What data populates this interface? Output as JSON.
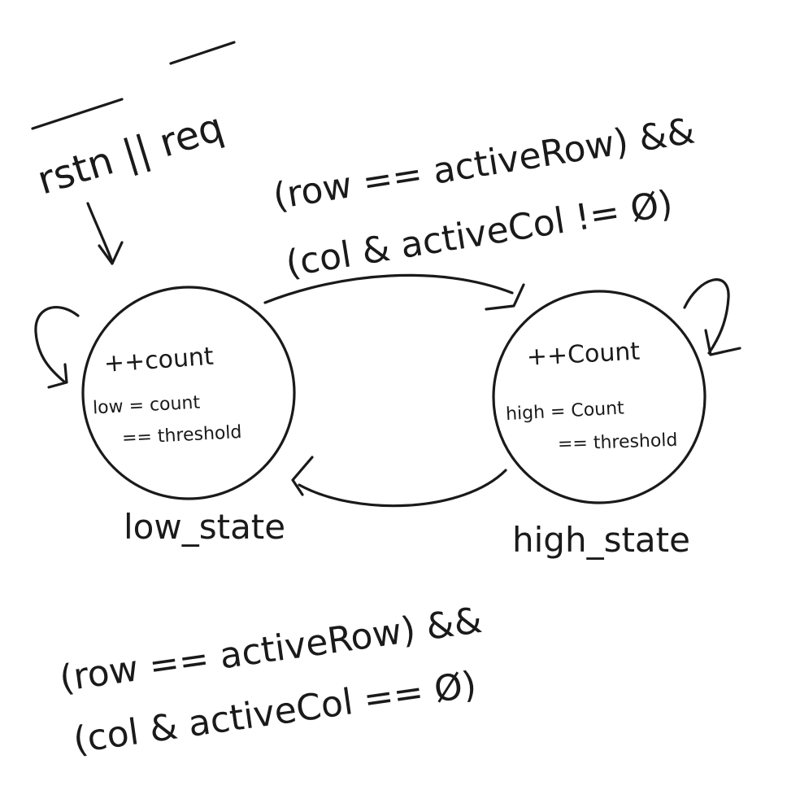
{
  "diagram": {
    "reset_condition": "rstn || req",
    "states": [
      {
        "id": "low_state",
        "name": "low_state",
        "action": "++count",
        "assign": "low = count",
        "compare": "== threshold"
      },
      {
        "id": "high_state",
        "name": "high_state",
        "action": "++Count",
        "assign": "high = Count",
        "compare": "== threshold"
      }
    ],
    "transitions": [
      {
        "from": "low_state",
        "to": "high_state",
        "condition_line1": "(row == activeRow) &&",
        "condition_line2": "(col & activeCol != Ø)"
      },
      {
        "from": "high_state",
        "to": "low_state",
        "condition_line1": "(row == activeRow) &&",
        "condition_line2": "(col & activeCol == Ø)"
      }
    ]
  }
}
